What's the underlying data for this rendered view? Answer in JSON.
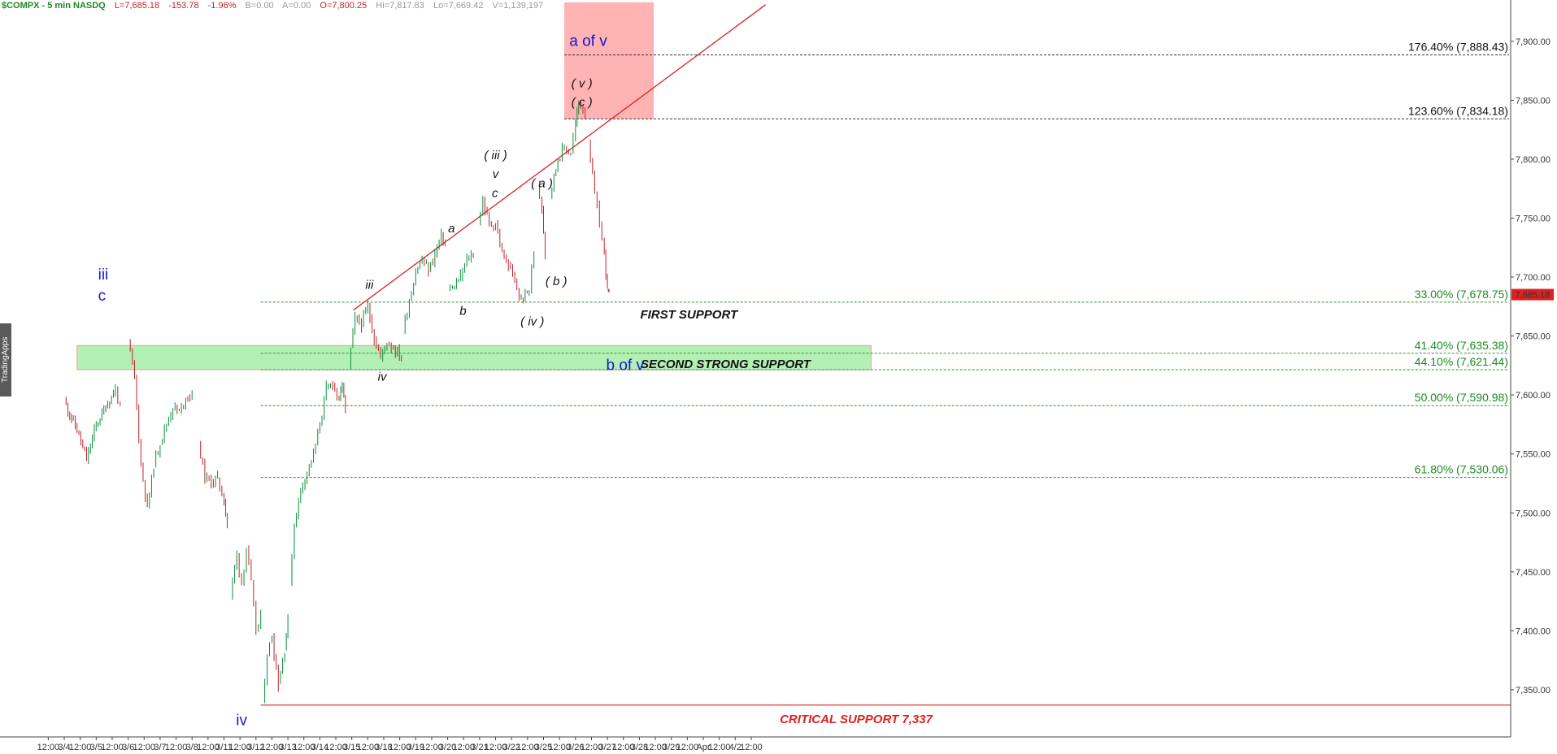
{
  "header": {
    "symbol": "$COMPX - 5 min  NASDQ",
    "last": "L=7,685.18",
    "change": "-153.78",
    "change_pct": "-1.96%",
    "bid": "B=0.00",
    "ask": "A=0.00",
    "open": "O=7,800.25",
    "high": "Hi=7,817.83",
    "low": "Lo=7,669.42",
    "volume": "V=1,139,197"
  },
  "watermark": "TradingApps",
  "colors": {
    "up": "#0a8f3c",
    "down": "#c0242b",
    "fib_green": "#1c8a22",
    "wave_blue": "#1515d6",
    "critical_red": "#e02020",
    "target_box": "#ffb3b3",
    "support_band": "#b3f0b3"
  },
  "chart_data": {
    "type": "candlestick",
    "interval": "5 min",
    "ylim": [
      7310,
      7935
    ],
    "y_ticks": [
      "7,350.00",
      "7,400.00",
      "7,450.00",
      "7,500.00",
      "7,550.00",
      "7,600.00",
      "7,650.00",
      "7,700.00",
      "7,750.00",
      "7,800.00",
      "7,850.00",
      "7,900.00"
    ],
    "x_ticks": [
      "12:00",
      "3/4",
      "12:00",
      "3/5",
      "12:00",
      "3/6",
      "12:00",
      "3/7",
      "12:00",
      "3/8",
      "12:00",
      "3/11",
      "12:00",
      "3/12",
      "12:00",
      "3/13",
      "12:00",
      "3/14",
      "12:00",
      "3/15",
      "12:00",
      "3/18",
      "12:00",
      "3/19",
      "12:00",
      "3/20",
      "12:00",
      "3/21",
      "12:00",
      "3/22",
      "12:00",
      "3/25",
      "12:00",
      "3/26",
      "12:00",
      "3/27",
      "12:00",
      "3/28",
      "12:00",
      "3/29",
      "12:00",
      "Apr",
      "12:00",
      "4/2",
      "12:00"
    ],
    "last_price": "7,685.18",
    "price_path": [
      [
        0.0,
        7595
      ],
      [
        0.4,
        7570
      ],
      [
        0.7,
        7545
      ],
      [
        1.0,
        7575
      ],
      [
        1.3,
        7590
      ],
      [
        1.6,
        7605
      ],
      [
        1.75,
        7590
      ],
      [
        2.0,
        7645
      ],
      [
        2.2,
        7615
      ],
      [
        2.4,
        7540
      ],
      [
        2.6,
        7505
      ],
      [
        2.8,
        7540
      ],
      [
        3.0,
        7560
      ],
      [
        3.2,
        7575
      ],
      [
        3.4,
        7590
      ],
      [
        3.6,
        7585
      ],
      [
        3.8,
        7598
      ],
      [
        4.0,
        7600
      ],
      [
        4.2,
        7560
      ],
      [
        4.4,
        7530
      ],
      [
        4.6,
        7525
      ],
      [
        4.8,
        7530
      ],
      [
        5.0,
        7510
      ],
      [
        5.1,
        7490
      ],
      [
        5.2,
        7430
      ],
      [
        5.4,
        7465
      ],
      [
        5.55,
        7440
      ],
      [
        5.7,
        7470
      ],
      [
        5.85,
        7440
      ],
      [
        6.0,
        7400
      ],
      [
        6.15,
        7410
      ],
      [
        6.2,
        7340
      ],
      [
        6.35,
        7380
      ],
      [
        6.5,
        7395
      ],
      [
        6.7,
        7355
      ],
      [
        6.9,
        7385
      ],
      [
        7.0,
        7410
      ],
      [
        7.05,
        7440
      ],
      [
        7.2,
        7490
      ],
      [
        7.4,
        7520
      ],
      [
        7.6,
        7535
      ],
      [
        7.8,
        7550
      ],
      [
        8.0,
        7575
      ],
      [
        8.2,
        7605
      ],
      [
        8.4,
        7610
      ],
      [
        8.6,
        7595
      ],
      [
        8.7,
        7610
      ],
      [
        8.8,
        7585
      ],
      [
        8.9,
        7625
      ],
      [
        9.1,
        7665
      ],
      [
        9.3,
        7660
      ],
      [
        9.5,
        7675
      ],
      [
        9.7,
        7648
      ],
      [
        9.9,
        7632
      ],
      [
        10.1,
        7645
      ],
      [
        10.3,
        7640
      ],
      [
        10.55,
        7632
      ],
      [
        10.6,
        7655
      ],
      [
        10.8,
        7680
      ],
      [
        11.0,
        7705
      ],
      [
        11.2,
        7715
      ],
      [
        11.4,
        7705
      ],
      [
        11.6,
        7720
      ],
      [
        11.8,
        7735
      ],
      [
        11.92,
        7730
      ],
      [
        12.0,
        7690
      ],
      [
        12.15,
        7690
      ],
      [
        12.4,
        7700
      ],
      [
        12.6,
        7715
      ],
      [
        12.8,
        7720
      ],
      [
        12.95,
        7745
      ],
      [
        13.1,
        7765
      ],
      [
        13.3,
        7745
      ],
      [
        13.5,
        7745
      ],
      [
        13.7,
        7720
      ],
      [
        13.9,
        7710
      ],
      [
        14.1,
        7695
      ],
      [
        14.3,
        7680
      ],
      [
        14.55,
        7690
      ],
      [
        14.7,
        7720
      ],
      [
        14.8,
        7780
      ],
      [
        14.95,
        7760
      ],
      [
        15.05,
        7720
      ],
      [
        15.2,
        7770
      ],
      [
        15.45,
        7800
      ],
      [
        15.65,
        7810
      ],
      [
        15.85,
        7805
      ],
      [
        16.0,
        7830
      ],
      [
        16.1,
        7848
      ],
      [
        16.3,
        7840
      ],
      [
        16.4,
        7815
      ],
      [
        16.6,
        7770
      ],
      [
        16.75,
        7745
      ],
      [
        16.9,
        7720
      ],
      [
        17.0,
        7690
      ],
      [
        17.05,
        7685
      ]
    ],
    "fib_levels": [
      {
        "label": "176.40% (7,888.43)",
        "value": 7888.43,
        "color": "#111111"
      },
      {
        "label": "123.60% (7,834.18)",
        "value": 7834.18,
        "color": "#111111"
      },
      {
        "label": "33.00% (7,678.75)",
        "value": 7678.75,
        "color": "#1c8a22"
      },
      {
        "label": "41.40% (7,635.38)",
        "value": 7635.38,
        "color": "#1c8a22"
      },
      {
        "label": "44.10% (7,621.44)",
        "value": 7621.44,
        "color": "#1c8a22"
      },
      {
        "label": "50.00% (7,590.98)",
        "value": 7590.98,
        "color": "#1c8a22"
      },
      {
        "label": "61.80% (7,530.06)",
        "value": 7530.06,
        "color": "#1c8a22"
      }
    ],
    "critical_support": {
      "value": 7337,
      "label": "CRITICAL SUPPORT 7,337"
    },
    "target_zone": {
      "x_start": 15.65,
      "x_end": 18.45,
      "y_low": 7834.18,
      "y_high": 7933
    },
    "support_band": {
      "x_start": 0.4,
      "x_end": 25.25,
      "y_low": 7621.44,
      "y_high": 7642
    },
    "trendline": {
      "x1": 9.05,
      "y1": 7672,
      "x2": 21.95,
      "y2": 7931
    },
    "zone_labels": [
      {
        "text": "FIRST SUPPORT",
        "x": 19.55,
        "y": 7665,
        "color": "#111111",
        "bold": false
      },
      {
        "text": "SECOND STRONG SUPPORT",
        "x": 20.7,
        "y": 7623,
        "color": "#111111",
        "bold": true
      }
    ],
    "wave_labels": [
      {
        "text": "iii",
        "x": 1.22,
        "y": 7698,
        "style": "blue"
      },
      {
        "text": "c",
        "x": 1.18,
        "y": 7680,
        "style": "blue"
      },
      {
        "text": "iv",
        "x": 5.55,
        "y": 7320,
        "style": "blue"
      },
      {
        "text": "iii",
        "x": 9.55,
        "y": 7690,
        "style": "black"
      },
      {
        "text": "iv",
        "x": 9.95,
        "y": 7612,
        "style": "black"
      },
      {
        "text": "a",
        "x": 12.12,
        "y": 7738,
        "style": "black"
      },
      {
        "text": "b",
        "x": 12.48,
        "y": 7668,
        "style": "black"
      },
      {
        "text": "( iii )",
        "x": 13.5,
        "y": 7800,
        "style": "black"
      },
      {
        "text": "v",
        "x": 13.5,
        "y": 7784,
        "style": "black"
      },
      {
        "text": "c",
        "x": 13.48,
        "y": 7768,
        "style": "black"
      },
      {
        "text": "( a )",
        "x": 14.95,
        "y": 7776,
        "style": "black"
      },
      {
        "text": "( iv )",
        "x": 14.65,
        "y": 7659,
        "style": "black"
      },
      {
        "text": "( b )",
        "x": 15.4,
        "y": 7693,
        "style": "black"
      },
      {
        "text": "( v )",
        "x": 16.2,
        "y": 7861,
        "style": "black"
      },
      {
        "text": "( c )",
        "x": 16.2,
        "y": 7845,
        "style": "black"
      },
      {
        "text": "a of v",
        "x": 16.4,
        "y": 7896,
        "style": "blue"
      },
      {
        "text": "b of  v",
        "x": 17.55,
        "y": 7621,
        "style": "blue"
      }
    ]
  }
}
